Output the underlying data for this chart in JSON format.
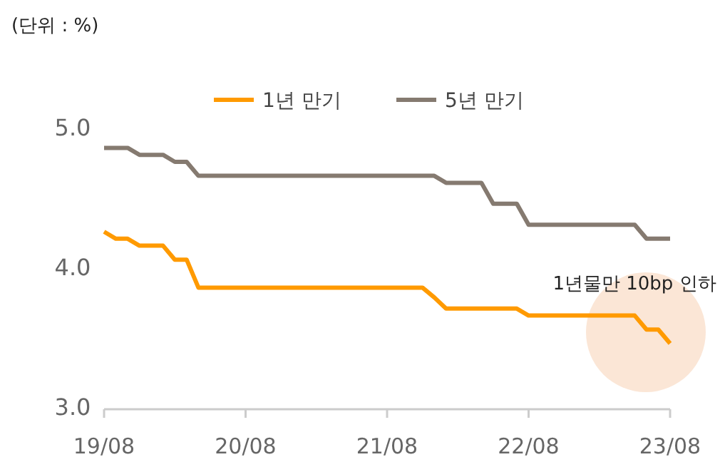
{
  "chart_data": {
    "type": "line",
    "ylabel": "(단위 : %)",
    "categories": [
      "19/08",
      null,
      null,
      null,
      null,
      null,
      null,
      null,
      null,
      null,
      null,
      null,
      "20/08",
      null,
      null,
      null,
      null,
      null,
      null,
      null,
      null,
      null,
      null,
      null,
      "21/08",
      null,
      null,
      null,
      null,
      null,
      null,
      null,
      null,
      null,
      null,
      null,
      "22/08",
      null,
      null,
      null,
      null,
      null,
      null,
      null,
      null,
      null,
      null,
      null,
      "23/08"
    ],
    "ylim": [
      3.0,
      5.0
    ],
    "yticks": [
      {
        "value": 3,
        "label": "3.0"
      },
      {
        "value": 4,
        "label": "4.0"
      },
      {
        "value": 5,
        "label": "5.0"
      }
    ],
    "grid": false,
    "legend": "top",
    "marker": "none",
    "line_style": "solid",
    "series": [
      {
        "name": "1년 만기",
        "color": "#ff9a00",
        "values": [
          4.25,
          4.2,
          4.2,
          4.15,
          4.15,
          4.15,
          4.05,
          4.05,
          3.85,
          3.85,
          3.85,
          3.85,
          3.85,
          3.85,
          3.85,
          3.85,
          3.85,
          3.85,
          3.85,
          3.85,
          3.85,
          3.85,
          3.85,
          3.85,
          3.85,
          3.85,
          3.85,
          3.85,
          3.78,
          3.7,
          3.7,
          3.7,
          3.7,
          3.7,
          3.7,
          3.7,
          3.65,
          3.65,
          3.65,
          3.65,
          3.65,
          3.65,
          3.65,
          3.65,
          3.65,
          3.65,
          3.55,
          3.55,
          3.45
        ]
      },
      {
        "name": "5년 만기",
        "color": "#857a70",
        "values": [
          4.85,
          4.85,
          4.85,
          4.8,
          4.8,
          4.8,
          4.75,
          4.75,
          4.65,
          4.65,
          4.65,
          4.65,
          4.65,
          4.65,
          4.65,
          4.65,
          4.65,
          4.65,
          4.65,
          4.65,
          4.65,
          4.65,
          4.65,
          4.65,
          4.65,
          4.65,
          4.65,
          4.65,
          4.65,
          4.6,
          4.6,
          4.6,
          4.6,
          4.45,
          4.45,
          4.45,
          4.3,
          4.3,
          4.3,
          4.3,
          4.3,
          4.3,
          4.3,
          4.3,
          4.3,
          4.3,
          4.2,
          4.2,
          4.2
        ]
      }
    ],
    "annotations": [
      "1년물만 10bp 인하"
    ]
  }
}
